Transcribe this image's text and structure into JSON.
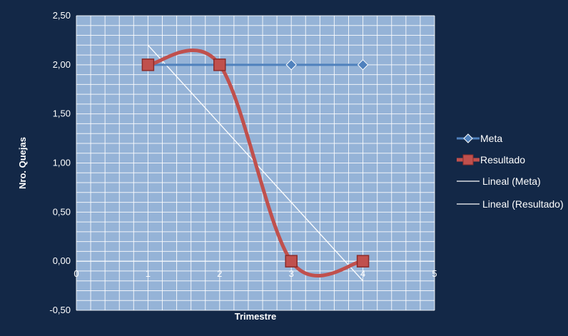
{
  "chart_data": {
    "type": "line",
    "title": "",
    "xlabel": "Trimestre",
    "ylabel": "Nro. Quejas",
    "xlim": [
      0,
      5
    ],
    "ylim": [
      -0.5,
      2.5
    ],
    "x_ticks": [
      "0",
      "1",
      "2",
      "3",
      "4",
      "5"
    ],
    "y_ticks": [
      "-0,50",
      "0,00",
      "0,50",
      "1,00",
      "1,50",
      "2,00",
      "2,50"
    ],
    "grid": true,
    "legend_position": "right",
    "series": [
      {
        "name": "Meta",
        "x": [
          1,
          2,
          3,
          4
        ],
        "values": [
          2.0,
          2.0,
          2.0,
          2.0
        ],
        "color": "#4f81bd",
        "marker": "diamond",
        "smooth": false
      },
      {
        "name": "Resultado",
        "x": [
          1,
          2,
          3,
          4
        ],
        "values": [
          2.0,
          2.0,
          0.0,
          0.0
        ],
        "color": "#c0504d",
        "marker": "square",
        "smooth": true
      },
      {
        "name": "Lineal (Meta)",
        "trendline_of": "Meta",
        "color": "#ffffff"
      },
      {
        "name": "Lineal (Resultado)",
        "trendline_of": "Resultado",
        "color": "#ffffff"
      }
    ],
    "colors": {
      "background": "#132847",
      "plot_area": "#95b3d7",
      "grid": "#ffffff"
    }
  }
}
